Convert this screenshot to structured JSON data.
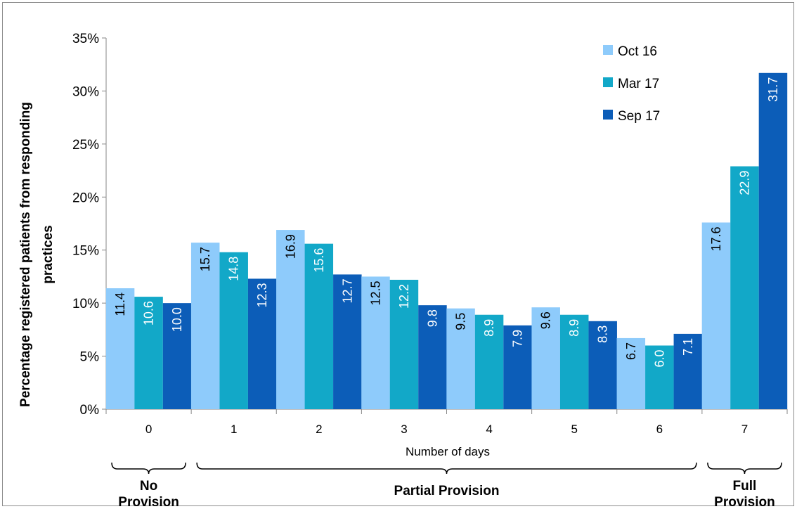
{
  "chart_data": {
    "type": "bar",
    "categories": [
      "0",
      "1",
      "2",
      "3",
      "4",
      "5",
      "6",
      "7"
    ],
    "series": [
      {
        "name": "Oct 16",
        "color": "#8ecbfb",
        "label_color": "#000000",
        "values": [
          11.4,
          15.7,
          16.9,
          12.5,
          9.5,
          9.6,
          6.7,
          17.6
        ]
      },
      {
        "name": "Mar 17",
        "color": "#12a8c8",
        "label_color": "#ffffff",
        "values": [
          10.6,
          14.8,
          15.6,
          12.2,
          8.9,
          8.9,
          6.0,
          22.9
        ]
      },
      {
        "name": "Sep 17",
        "color": "#0c5db8",
        "label_color": "#ffffff",
        "values": [
          10.0,
          12.3,
          12.7,
          9.8,
          7.9,
          8.3,
          7.1,
          31.7
        ]
      }
    ],
    "data_labels": [
      [
        "11.4",
        "15.7",
        "16.9",
        "12.5",
        "9.5",
        "9.6",
        "6.7",
        "17.6"
      ],
      [
        "10.6",
        "14.8",
        "15.6",
        "12.2",
        "8.9",
        "8.9",
        "6.0",
        "22.9"
      ],
      [
        "10.0",
        "12.3",
        "12.7",
        "9.8",
        "7.9",
        "8.3",
        "7.1",
        "31.7"
      ]
    ],
    "xlabel": "Number of days",
    "ylabel": "Percentage registered patients from responding practices",
    "ylim": [
      0,
      35
    ],
    "yticks": [
      "0%",
      "5%",
      "10%",
      "15%",
      "20%",
      "25%",
      "30%",
      "35%"
    ],
    "legend_position": "top-right",
    "grid": false,
    "groups": [
      {
        "label": "No Provision",
        "from": "0",
        "to": "0"
      },
      {
        "label": "Partial Provision",
        "from": "1",
        "to": "6"
      },
      {
        "label": "Full Provision",
        "from": "7",
        "to": "7"
      }
    ]
  }
}
